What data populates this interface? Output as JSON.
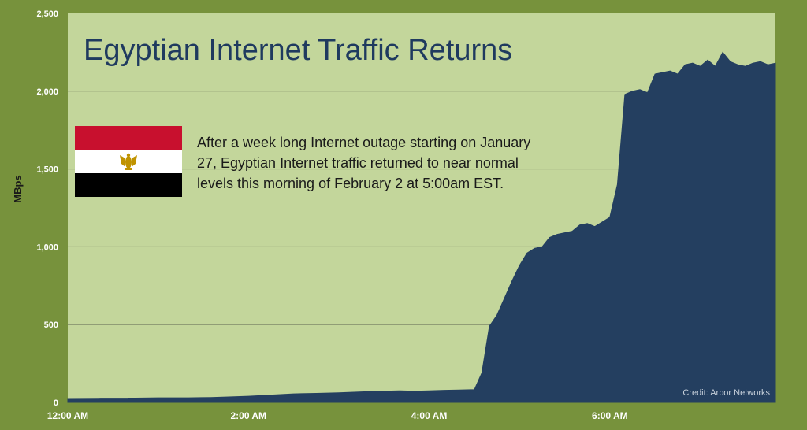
{
  "chart_data": {
    "type": "area",
    "title": "Egyptian Internet Traffic Returns",
    "ylabel": "MBps",
    "xlabel": "",
    "ylim": [
      0,
      2500
    ],
    "yticks": [
      0,
      500,
      1000,
      1500,
      2000,
      2500
    ],
    "ytick_labels": [
      "0",
      "500",
      "1,000",
      "1,500",
      "2,000",
      "2,500"
    ],
    "xlim": [
      "00:00",
      "07:50"
    ],
    "xticks": [
      "00:00",
      "02:00",
      "04:00",
      "06:00"
    ],
    "xtick_labels": [
      "12:00 AM",
      "2:00 AM",
      "4:00 AM",
      "6:00 AM"
    ],
    "grid": true,
    "series": [
      {
        "color": "#243f60",
        "x": [
          "00:00",
          "00:20",
          "00:40",
          "00:45",
          "01:00",
          "01:20",
          "01:35",
          "01:45",
          "02:00",
          "02:10",
          "02:20",
          "02:30",
          "02:45",
          "03:00",
          "03:10",
          "03:20",
          "03:30",
          "03:40",
          "03:50",
          "04:00",
          "04:10",
          "04:20",
          "04:30",
          "04:35",
          "04:40",
          "04:45",
          "04:50",
          "04:55",
          "05:00",
          "05:05",
          "05:10",
          "05:15",
          "05:20",
          "05:25",
          "05:30",
          "05:35",
          "05:40",
          "05:45",
          "05:50",
          "05:55",
          "06:00",
          "06:05",
          "06:10",
          "06:15",
          "06:20",
          "06:25",
          "06:30",
          "06:35",
          "06:40",
          "06:45",
          "06:50",
          "06:55",
          "07:00",
          "07:05",
          "07:10",
          "07:15",
          "07:20",
          "07:25",
          "07:30",
          "07:35",
          "07:40",
          "07:45",
          "07:50"
        ],
        "values": [
          20,
          22,
          23,
          28,
          30,
          30,
          32,
          35,
          40,
          45,
          50,
          55,
          58,
          62,
          66,
          70,
          72,
          75,
          72,
          75,
          78,
          80,
          82,
          190,
          490,
          560,
          670,
          780,
          880,
          960,
          990,
          1000,
          1060,
          1080,
          1090,
          1100,
          1140,
          1150,
          1130,
          1160,
          1190,
          1400,
          1980,
          2000,
          2010,
          1990,
          2110,
          2120,
          2130,
          2110,
          2170,
          2180,
          2160,
          2200,
          2160,
          2250,
          2190,
          2170,
          2160,
          2180,
          2190,
          2170,
          2180
        ]
      }
    ],
    "annotations": [
      "After a week long Internet outage starting on January",
      "27, Egyptian Internet traffic returned to near normal",
      "levels this morning of February 2  at 5:00am EST."
    ],
    "credit": "Credit: Arbor Networks",
    "colors": {
      "frame": "#77923c",
      "plot_bg": "#c3d69b",
      "area": "#243f60",
      "flag_red": "#c8102e",
      "flag_black": "#000000",
      "flag_white": "#ffffff",
      "eagle": "#c09300"
    }
  }
}
